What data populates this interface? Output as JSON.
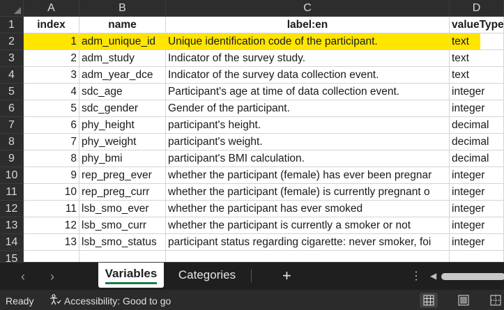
{
  "columns": [
    "A",
    "B",
    "C",
    "D"
  ],
  "rows": [
    {
      "n": "1",
      "a": "index",
      "b": "name",
      "c": "label:en",
      "d": "valueType",
      "header": true
    },
    {
      "n": "2",
      "a": "1",
      "b": "adm_unique_id",
      "c": "Unique identification code of the participant.",
      "d": "text",
      "highlight": true
    },
    {
      "n": "3",
      "a": "2",
      "b": "adm_study",
      "c": "Indicator of the survey study.",
      "d": "text"
    },
    {
      "n": "4",
      "a": "3",
      "b": "adm_year_dce",
      "c": "Indicator of the survey data collection event.",
      "d": "text"
    },
    {
      "n": "5",
      "a": "4",
      "b": "sdc_age",
      "c": "Participant's age at time of data collection event.",
      "d": "integer"
    },
    {
      "n": "6",
      "a": "5",
      "b": "sdc_gender",
      "c": "Gender of the participant.",
      "d": "integer"
    },
    {
      "n": "7",
      "a": "6",
      "b": "phy_height",
      "c": "participant's height.",
      "d": "decimal"
    },
    {
      "n": "8",
      "a": "7",
      "b": "phy_weight",
      "c": "participant's weight.",
      "d": "decimal"
    },
    {
      "n": "9",
      "a": "8",
      "b": "phy_bmi",
      "c": "participant's BMI calculation.",
      "d": "decimal"
    },
    {
      "n": "10",
      "a": "9",
      "b": "rep_preg_ever",
      "c": "whether the participant (female) has ever been pregnar",
      "d": "integer"
    },
    {
      "n": "11",
      "a": "10",
      "b": "rep_preg_curr",
      "c": "whether the participant (female) is currently pregnant o",
      "d": "integer"
    },
    {
      "n": "12",
      "a": "11",
      "b": "lsb_smo_ever",
      "c": "whether the participant has ever smoked",
      "d": "integer"
    },
    {
      "n": "13",
      "a": "12",
      "b": "lsb_smo_curr",
      "c": "whether the participant is currently a smoker or not",
      "d": "integer"
    },
    {
      "n": "14",
      "a": "13",
      "b": "lsb_smo_status",
      "c": "participant status regarding cigarette: never smoker, foi",
      "d": "integer"
    },
    {
      "n": "15",
      "a": "",
      "b": "",
      "c": "",
      "d": ""
    }
  ],
  "tabs": {
    "sheet1": "Variables",
    "sheet2": "Categories",
    "add": "+"
  },
  "icons": {
    "prev": "chevron-left-icon",
    "next": "chevron-right-icon",
    "accessibility": "accessibility-icon",
    "normal_view": "normal-view-icon",
    "page_layout": "page-layout-icon",
    "page_break": "page-break-icon"
  },
  "status": {
    "ready": "Ready",
    "accessibility": "Accessibility: Good to go"
  },
  "colors": {
    "highlight": "#ffe500",
    "active_tab_underline": "#1d7a43"
  }
}
